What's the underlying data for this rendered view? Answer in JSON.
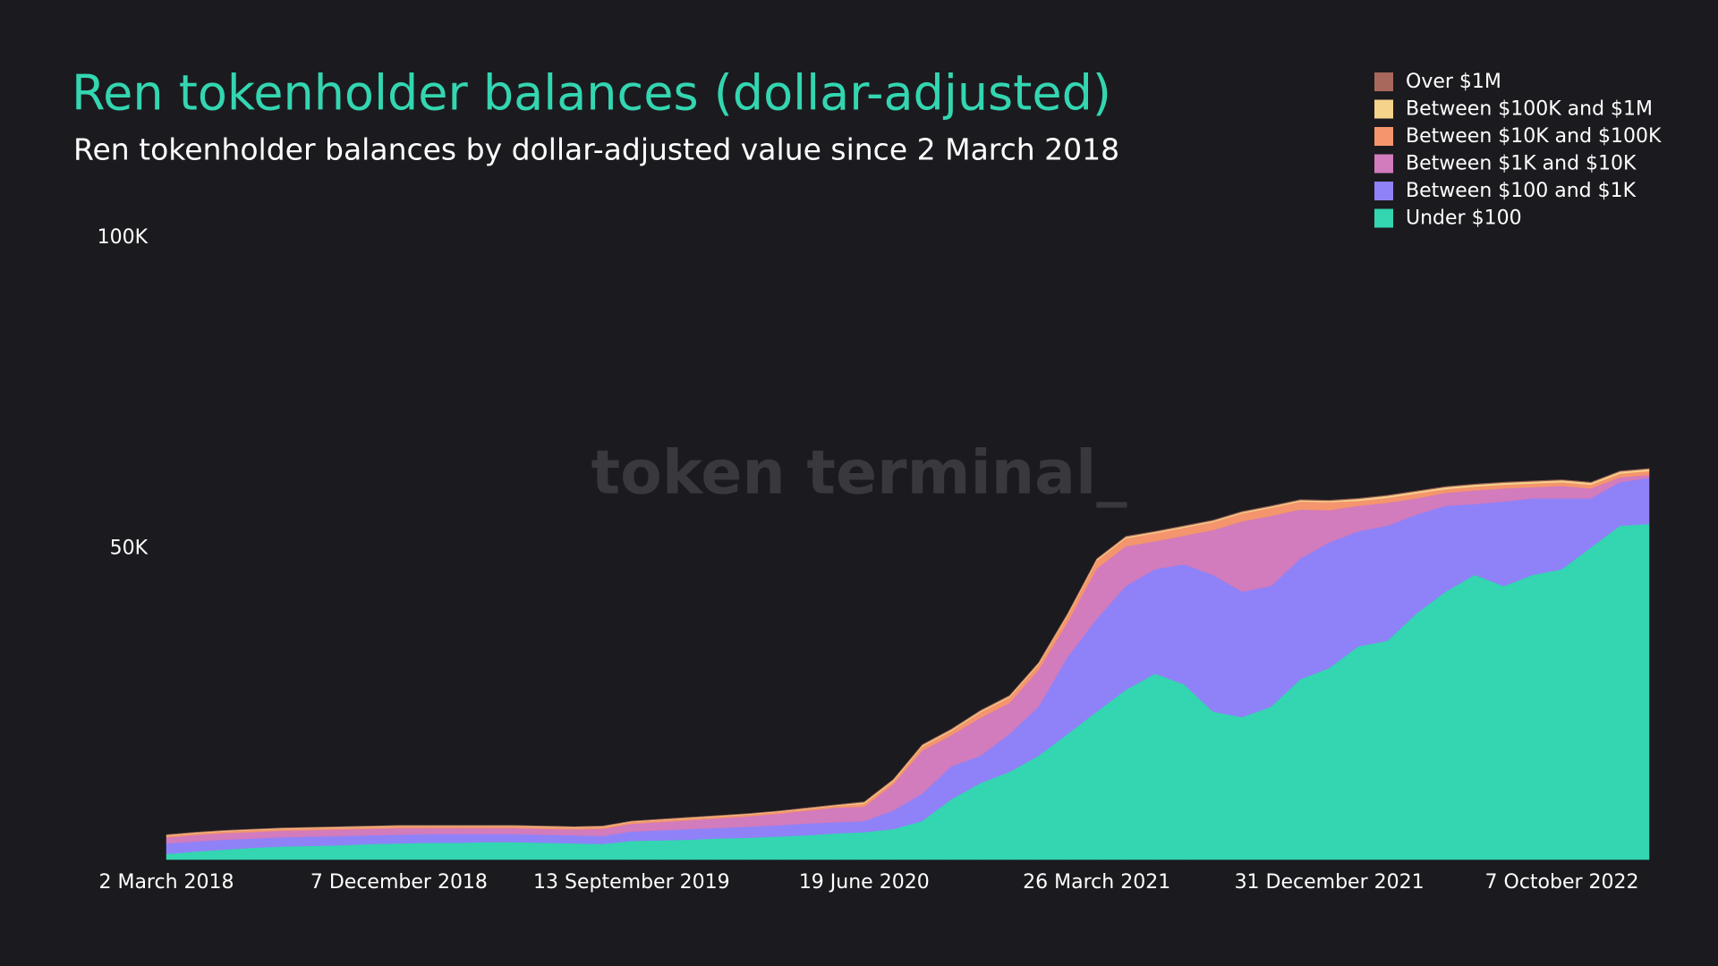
{
  "chart_data": {
    "type": "stacked_area",
    "title": "Ren tokenholder balances (dollar-adjusted)",
    "subtitle": "Ren tokenholder balances by dollar-adjusted value since 2 March 2018",
    "watermark": "token terminal_",
    "x": [
      "2018-03-02",
      "2018-04-06",
      "2018-05-11",
      "2018-06-15",
      "2018-07-20",
      "2018-08-24",
      "2018-09-28",
      "2018-11-02",
      "2018-12-07",
      "2019-01-11",
      "2019-02-15",
      "2019-03-22",
      "2019-04-26",
      "2019-05-31",
      "2019-07-05",
      "2019-08-09",
      "2019-09-13",
      "2019-10-18",
      "2019-11-22",
      "2019-12-27",
      "2020-01-31",
      "2020-03-06",
      "2020-04-10",
      "2020-05-15",
      "2020-06-19",
      "2020-07-24",
      "2020-08-28",
      "2020-10-02",
      "2020-11-06",
      "2020-12-11",
      "2021-01-15",
      "2021-02-19",
      "2021-03-26",
      "2021-04-30",
      "2021-06-04",
      "2021-07-09",
      "2021-08-13",
      "2021-09-17",
      "2021-10-22",
      "2021-11-26",
      "2021-12-31",
      "2022-02-04",
      "2022-03-11",
      "2022-04-15",
      "2022-05-20",
      "2022-06-24",
      "2022-07-29",
      "2022-09-02",
      "2022-10-07",
      "2022-11-11",
      "2022-12-16",
      "2023-01-20"
    ],
    "xlim": [
      "2018-03-02",
      "2023-01-20"
    ],
    "xticks": [
      {
        "value": "2018-03-02",
        "label": "2 March 2018"
      },
      {
        "value": "2018-12-07",
        "label": "7 December 2018"
      },
      {
        "value": "2019-09-13",
        "label": "13 September 2019"
      },
      {
        "value": "2020-06-19",
        "label": "19 June 2020"
      },
      {
        "value": "2021-03-26",
        "label": "26 March 2021"
      },
      {
        "value": "2021-12-31",
        "label": "31 December 2021"
      },
      {
        "value": "2022-10-07",
        "label": "7 October 2022"
      }
    ],
    "ylim": [
      0,
      100000
    ],
    "yticks": [
      {
        "value": 50000,
        "label": "50K"
      },
      {
        "value": 100000,
        "label": "100K"
      }
    ],
    "series": [
      {
        "name": "Under $100",
        "color": "#33d6b0",
        "values": [
          900,
          1300,
          1600,
          1900,
          2100,
          2200,
          2300,
          2500,
          2600,
          2700,
          2700,
          2800,
          2800,
          2700,
          2600,
          2500,
          3000,
          3100,
          3200,
          3400,
          3500,
          3700,
          3900,
          4200,
          4400,
          4900,
          6200,
          9700,
          12300,
          14100,
          16700,
          20200,
          23800,
          27300,
          29900,
          28200,
          23800,
          22900,
          24600,
          29000,
          30800,
          34300,
          35200,
          39600,
          43100,
          45800,
          44000,
          45800,
          46700,
          50200,
          53700,
          54000
        ]
      },
      {
        "name": "Between $100 and $1K",
        "color": "#8f82f8",
        "values": [
          1700,
          1600,
          1600,
          1500,
          1500,
          1500,
          1500,
          1400,
          1400,
          1400,
          1400,
          1300,
          1300,
          1300,
          1300,
          1300,
          1500,
          1600,
          1700,
          1700,
          1800,
          1800,
          1900,
          1800,
          1800,
          3000,
          4400,
          5300,
          4400,
          6100,
          7900,
          12400,
          14900,
          16700,
          16800,
          19300,
          22000,
          20200,
          19400,
          19400,
          20200,
          18500,
          18500,
          15900,
          13800,
          11400,
          13600,
          12300,
          11400,
          7900,
          7000,
          7400
        ]
      },
      {
        "name": "Between $1K and $10K",
        "color": "#d27bbd",
        "values": [
          950,
          1050,
          1050,
          1050,
          1050,
          1050,
          1050,
          1050,
          1050,
          950,
          950,
          950,
          950,
          950,
          950,
          1150,
          1250,
          1350,
          1450,
          1550,
          1650,
          1850,
          2050,
          2350,
          2300,
          4200,
          6900,
          5000,
          6100,
          5000,
          5900,
          5600,
          8100,
          6400,
          4500,
          4600,
          7200,
          11300,
          11300,
          7900,
          5200,
          4100,
          3700,
          2600,
          2100,
          2200,
          2100,
          1800,
          2000,
          1600,
          800,
          500
        ]
      },
      {
        "name": "Between $10K and $100K",
        "color": "#f4956d",
        "values": [
          300,
          300,
          300,
          300,
          300,
          300,
          300,
          300,
          300,
          300,
          300,
          300,
          300,
          300,
          300,
          300,
          300,
          300,
          300,
          300,
          300,
          300,
          300,
          300,
          500,
          500,
          700,
          700,
          900,
          900,
          900,
          1100,
          1300,
          1300,
          1300,
          1300,
          1300,
          1300,
          1300,
          1300,
          1300,
          800,
          800,
          800,
          600,
          600,
          600,
          600,
          600,
          600,
          600,
          600
        ]
      },
      {
        "name": "Between $100K and $1M",
        "color": "#f5d38a",
        "values": [
          100,
          100,
          100,
          100,
          100,
          100,
          100,
          100,
          100,
          100,
          100,
          100,
          100,
          100,
          100,
          100,
          100,
          100,
          100,
          100,
          100,
          100,
          100,
          100,
          200,
          200,
          200,
          200,
          200,
          200,
          200,
          200,
          200,
          200,
          200,
          200,
          200,
          200,
          200,
          200,
          200,
          300,
          300,
          300,
          300,
          300,
          300,
          300,
          300,
          300,
          300,
          300
        ]
      },
      {
        "name": "Over $1M",
        "color": "#a8685c",
        "values": [
          50,
          50,
          50,
          50,
          50,
          50,
          50,
          50,
          50,
          50,
          50,
          50,
          50,
          50,
          50,
          50,
          50,
          50,
          50,
          50,
          50,
          50,
          50,
          50,
          100,
          100,
          100,
          100,
          100,
          100,
          100,
          100,
          100,
          100,
          100,
          100,
          100,
          100,
          100,
          100,
          100,
          100,
          100,
          100,
          100,
          100,
          100,
          100,
          100,
          100,
          100,
          100
        ]
      }
    ]
  }
}
